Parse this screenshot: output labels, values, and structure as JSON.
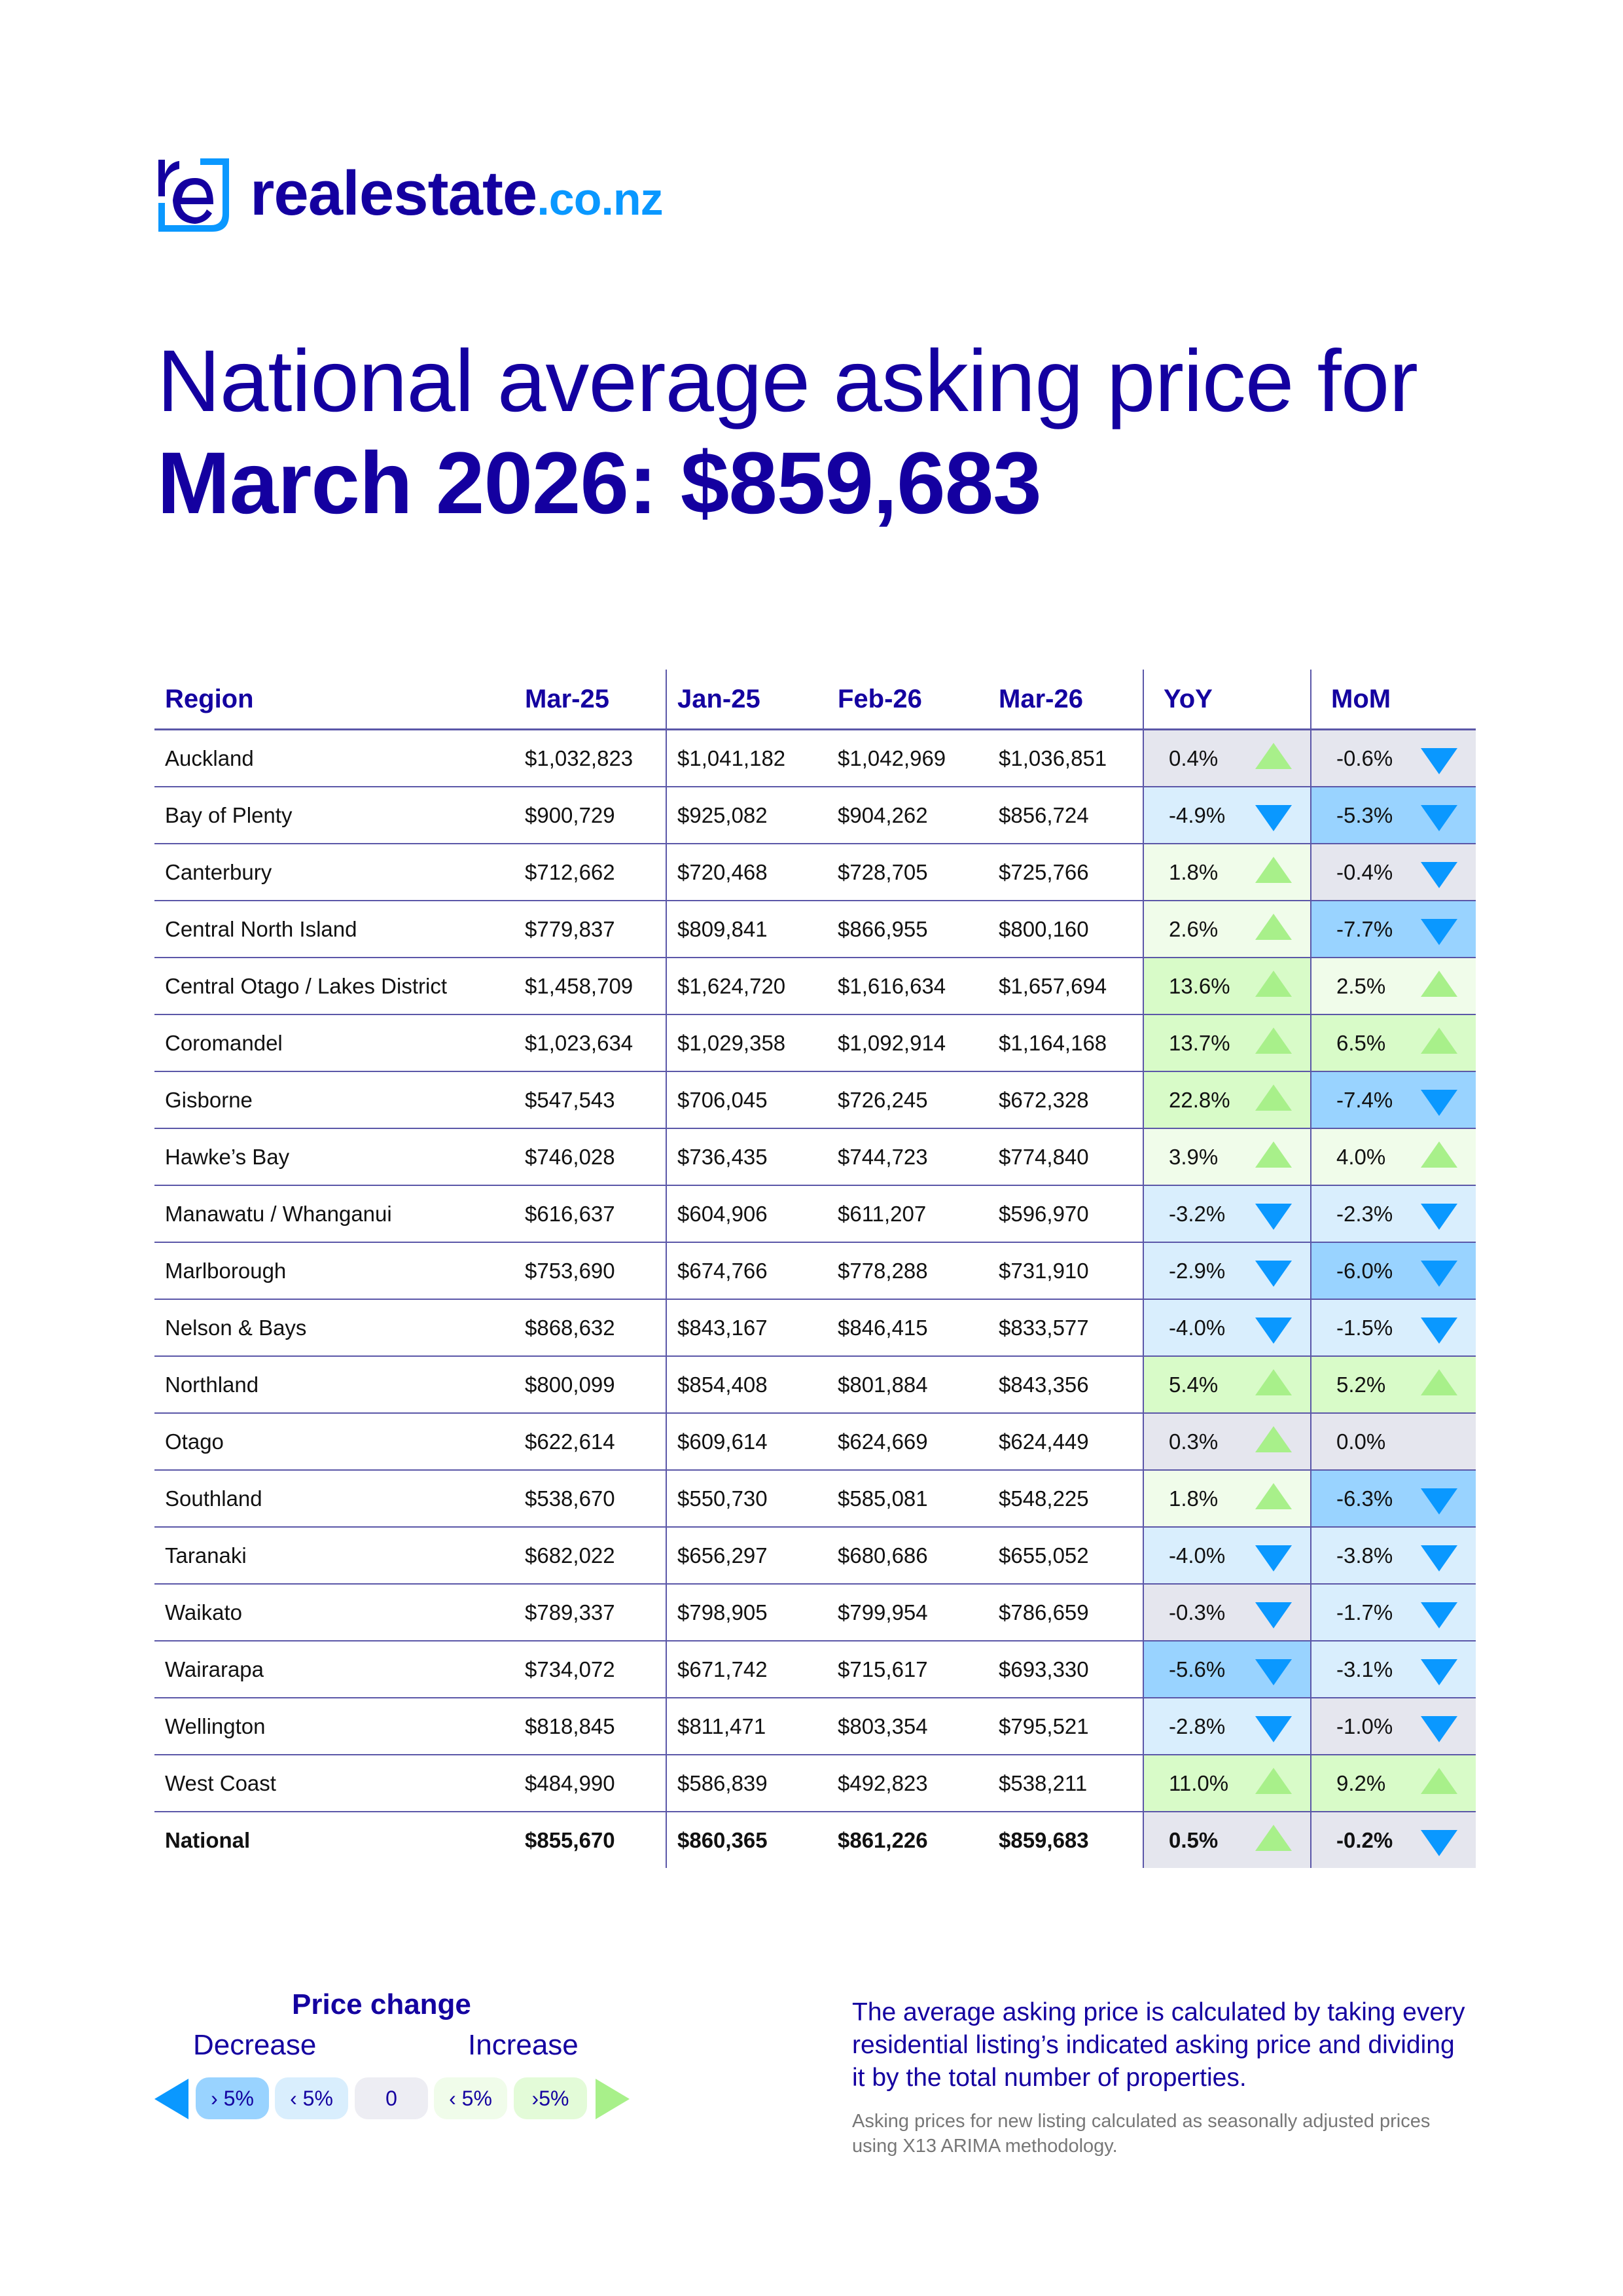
{
  "logo": {
    "name": "realestate",
    "tld": ".co.nz"
  },
  "title": {
    "line1": "National average asking price for",
    "line2": "March 2026: $859,683"
  },
  "table": {
    "headers": [
      "Region",
      "Mar-25",
      "Jan-25",
      "Feb-26",
      "Mar-26",
      "YoY",
      "MoM"
    ],
    "rows": [
      [
        "Auckland",
        "$1,032,823",
        "$1,041,182",
        "$1,042,969",
        "$1,036,851",
        "0.4%",
        "-0.6%"
      ],
      [
        "Bay of Plenty",
        "$900,729",
        "$925,082",
        "$904,262",
        "$856,724",
        "-4.9%",
        "-5.3%"
      ],
      [
        "Canterbury",
        "$712,662",
        "$720,468",
        "$728,705",
        "$725,766",
        "1.8%",
        "-0.4%"
      ],
      [
        "Central North Island",
        "$779,837",
        "$809,841",
        "$866,955",
        "$800,160",
        "2.6%",
        "-7.7%"
      ],
      [
        "Central Otago / Lakes District",
        "$1,458,709",
        "$1,624,720",
        "$1,616,634",
        "$1,657,694",
        "13.6%",
        "2.5%"
      ],
      [
        "Coromandel",
        "$1,023,634",
        "$1,029,358",
        "$1,092,914",
        "$1,164,168",
        "13.7%",
        "6.5%"
      ],
      [
        "Gisborne",
        "$547,543",
        "$706,045",
        "$726,245",
        "$672,328",
        "22.8%",
        "-7.4%"
      ],
      [
        "Hawke’s Bay",
        "$746,028",
        "$736,435",
        "$744,723",
        "$774,840",
        "3.9%",
        "4.0%"
      ],
      [
        "Manawatu / Whanganui",
        "$616,637",
        "$604,906",
        "$611,207",
        "$596,970",
        "-3.2%",
        "-2.3%"
      ],
      [
        "Marlborough",
        "$753,690",
        "$674,766",
        "$778,288",
        "$731,910",
        "-2.9%",
        "-6.0%"
      ],
      [
        "Nelson & Bays",
        "$868,632",
        "$843,167",
        "$846,415",
        "$833,577",
        "-4.0%",
        "-1.5%"
      ],
      [
        "Northland",
        "$800,099",
        "$854,408",
        "$801,884",
        "$843,356",
        "5.4%",
        "5.2%"
      ],
      [
        "Otago",
        "$622,614",
        "$609,614",
        "$624,669",
        "$624,449",
        "0.3%",
        "0.0%"
      ],
      [
        "Southland",
        "$538,670",
        "$550,730",
        "$585,081",
        "$548,225",
        "1.8%",
        "-6.3%"
      ],
      [
        "Taranaki",
        "$682,022",
        "$656,297",
        "$680,686",
        "$655,052",
        "-4.0%",
        "-3.8%"
      ],
      [
        "Waikato",
        "$789,337",
        "$798,905",
        "$799,954",
        "$786,659",
        "-0.3%",
        "-1.7%"
      ],
      [
        "Wairarapa",
        "$734,072",
        "$671,742",
        "$715,617",
        "$693,330",
        "-5.6%",
        "-3.1%"
      ],
      [
        "Wellington",
        "$818,845",
        "$811,471",
        "$803,354",
        "$795,521",
        "-2.8%",
        "-1.0%"
      ],
      [
        "West Coast",
        "$484,990",
        "$586,839",
        "$492,823",
        "$538,211",
        "11.0%",
        "9.2%"
      ],
      [
        "National",
        "$855,670",
        "$860,365",
        "$861,226",
        "$859,683",
        "0.5%",
        "-0.2%"
      ]
    ]
  },
  "legend": {
    "title": "Price change",
    "decrease": "Decrease",
    "increase": "Increase",
    "pills": [
      "› 5%",
      "‹ 5%",
      "0",
      "‹ 5%",
      "›5%"
    ]
  },
  "note": "The average asking price is calculated by taking every residential listing’s indicated asking price and dividing it by the total number of properties.",
  "subnote": "Asking prices for new listing calculated as seasonally adjusted prices using X13 ARIMA methodology.",
  "colors": {
    "navy": "#1400a0",
    "blue": "#0a98ff",
    "green": "#a8f08a",
    "gray": "#e5e6ee",
    "light_blue": "#d9eefd",
    "strong_blue": "#99d3ff",
    "light_green": "#f0fcea",
    "strong_green": "#d8fbc8"
  }
}
